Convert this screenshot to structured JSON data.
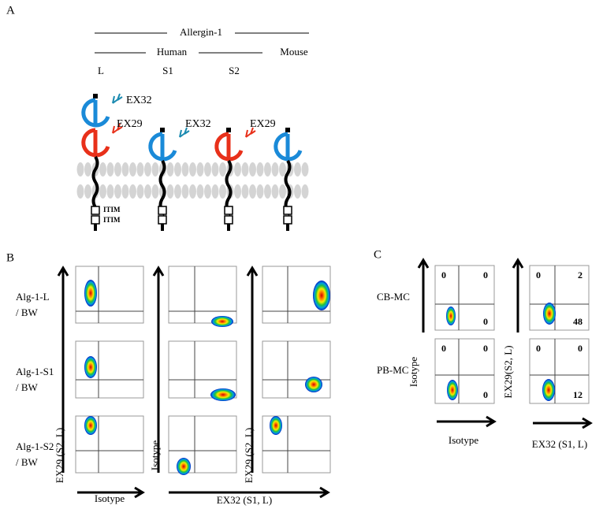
{
  "panel_a": {
    "letter": "A",
    "group_label": "Allergin-1",
    "species": [
      "Human",
      "Mouse"
    ],
    "isoforms": [
      "L",
      "S1",
      "S2"
    ],
    "antibodies": [
      [
        "EX32",
        "EX29"
      ],
      [
        "EX32"
      ],
      [
        "EX29"
      ]
    ],
    "motifs": [
      "ITIM",
      "ITIM"
    ]
  },
  "panel_b": {
    "letter": "B",
    "rows": [
      [
        "Alg-1-L",
        "/ BW"
      ],
      [
        "Alg-1-S1",
        "/ BW"
      ],
      [
        "Alg-1-S2",
        "/ BW"
      ]
    ],
    "y_labels": [
      "EX29 (S2, L)",
      "Isotype",
      "EX29 (S2, L)"
    ],
    "x_labels": [
      "Isotype",
      "EX32 (S1, L)"
    ]
  },
  "panel_c": {
    "letter": "C",
    "rows": [
      "CB-MC",
      "PB-MC"
    ],
    "y_labels": [
      "Isotype",
      "EX29(S2, L)"
    ],
    "x_labels": [
      "Isotype",
      "EX32 (S1, L)"
    ],
    "quadrants": [
      [
        [
          "0",
          "0",
          "0"
        ],
        [
          "0",
          "2",
          "48"
        ]
      ],
      [
        [
          "0",
          "0",
          "0"
        ],
        [
          "0",
          "0",
          "12"
        ]
      ]
    ]
  }
}
